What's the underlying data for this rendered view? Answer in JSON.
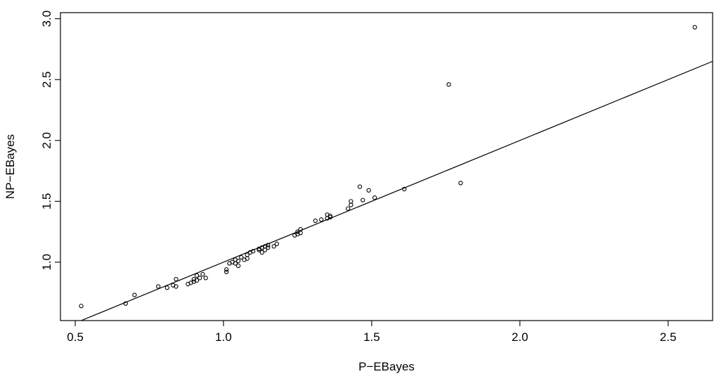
{
  "chart_data": {
    "type": "scatter",
    "title": "",
    "xlabel": "P−EBayes",
    "ylabel": "NP−EBayes",
    "xlim": [
      0.45,
      2.65
    ],
    "ylim": [
      0.52,
      3.05
    ],
    "x_ticks": [
      0.5,
      1.0,
      1.5,
      2.0,
      2.5
    ],
    "x_tick_labels": [
      "0.5",
      "1.0",
      "1.5",
      "2.0",
      "2.5"
    ],
    "y_ticks": [
      1.0,
      1.5,
      2.0,
      2.5,
      3.0
    ],
    "y_tick_labels": [
      "1.0",
      "1.5",
      "2.0",
      "2.5",
      "3.0"
    ],
    "grid": false,
    "legend": "none",
    "colors": {
      "points": "#000000",
      "line": "#000000",
      "background": "#ffffff"
    },
    "reference_line": {
      "type": "fitted-line",
      "points": [
        [
          0.45,
          0.45
        ],
        [
          2.65,
          2.65
        ]
      ]
    },
    "points": [
      [
        0.52,
        0.64
      ],
      [
        0.67,
        0.66
      ],
      [
        0.7,
        0.73
      ],
      [
        0.78,
        0.8
      ],
      [
        0.81,
        0.79
      ],
      [
        0.83,
        0.81
      ],
      [
        0.84,
        0.86
      ],
      [
        0.84,
        0.8
      ],
      [
        0.88,
        0.82
      ],
      [
        0.89,
        0.83
      ],
      [
        0.9,
        0.84
      ],
      [
        0.9,
        0.86
      ],
      [
        0.91,
        0.89
      ],
      [
        0.91,
        0.85
      ],
      [
        0.92,
        0.87
      ],
      [
        0.93,
        0.9
      ],
      [
        0.94,
        0.87
      ],
      [
        1.01,
        0.94
      ],
      [
        1.01,
        0.92
      ],
      [
        1.02,
        0.99
      ],
      [
        1.03,
        1.0
      ],
      [
        1.04,
        1.02
      ],
      [
        1.04,
        0.99
      ],
      [
        1.05,
        0.97
      ],
      [
        1.05,
        1.01
      ],
      [
        1.06,
        1.04
      ],
      [
        1.07,
        1.02
      ],
      [
        1.08,
        1.06
      ],
      [
        1.08,
        1.03
      ],
      [
        1.09,
        1.08
      ],
      [
        1.1,
        1.09
      ],
      [
        1.12,
        1.1
      ],
      [
        1.12,
        1.11
      ],
      [
        1.13,
        1.08
      ],
      [
        1.13,
        1.12
      ],
      [
        1.14,
        1.13
      ],
      [
        1.14,
        1.1
      ],
      [
        1.15,
        1.14
      ],
      [
        1.15,
        1.12
      ],
      [
        1.17,
        1.13
      ],
      [
        1.18,
        1.15
      ],
      [
        1.24,
        1.22
      ],
      [
        1.25,
        1.23
      ],
      [
        1.25,
        1.25
      ],
      [
        1.26,
        1.24
      ],
      [
        1.26,
        1.27
      ],
      [
        1.31,
        1.34
      ],
      [
        1.33,
        1.35
      ],
      [
        1.35,
        1.36
      ],
      [
        1.35,
        1.39
      ],
      [
        1.36,
        1.37
      ],
      [
        1.36,
        1.38
      ],
      [
        1.42,
        1.44
      ],
      [
        1.43,
        1.47
      ],
      [
        1.43,
        1.5
      ],
      [
        1.46,
        1.62
      ],
      [
        1.47,
        1.51
      ],
      [
        1.49,
        1.59
      ],
      [
        1.51,
        1.53
      ],
      [
        1.61,
        1.6
      ],
      [
        1.76,
        2.46
      ],
      [
        1.8,
        1.65
      ],
      [
        2.59,
        2.93
      ]
    ]
  }
}
